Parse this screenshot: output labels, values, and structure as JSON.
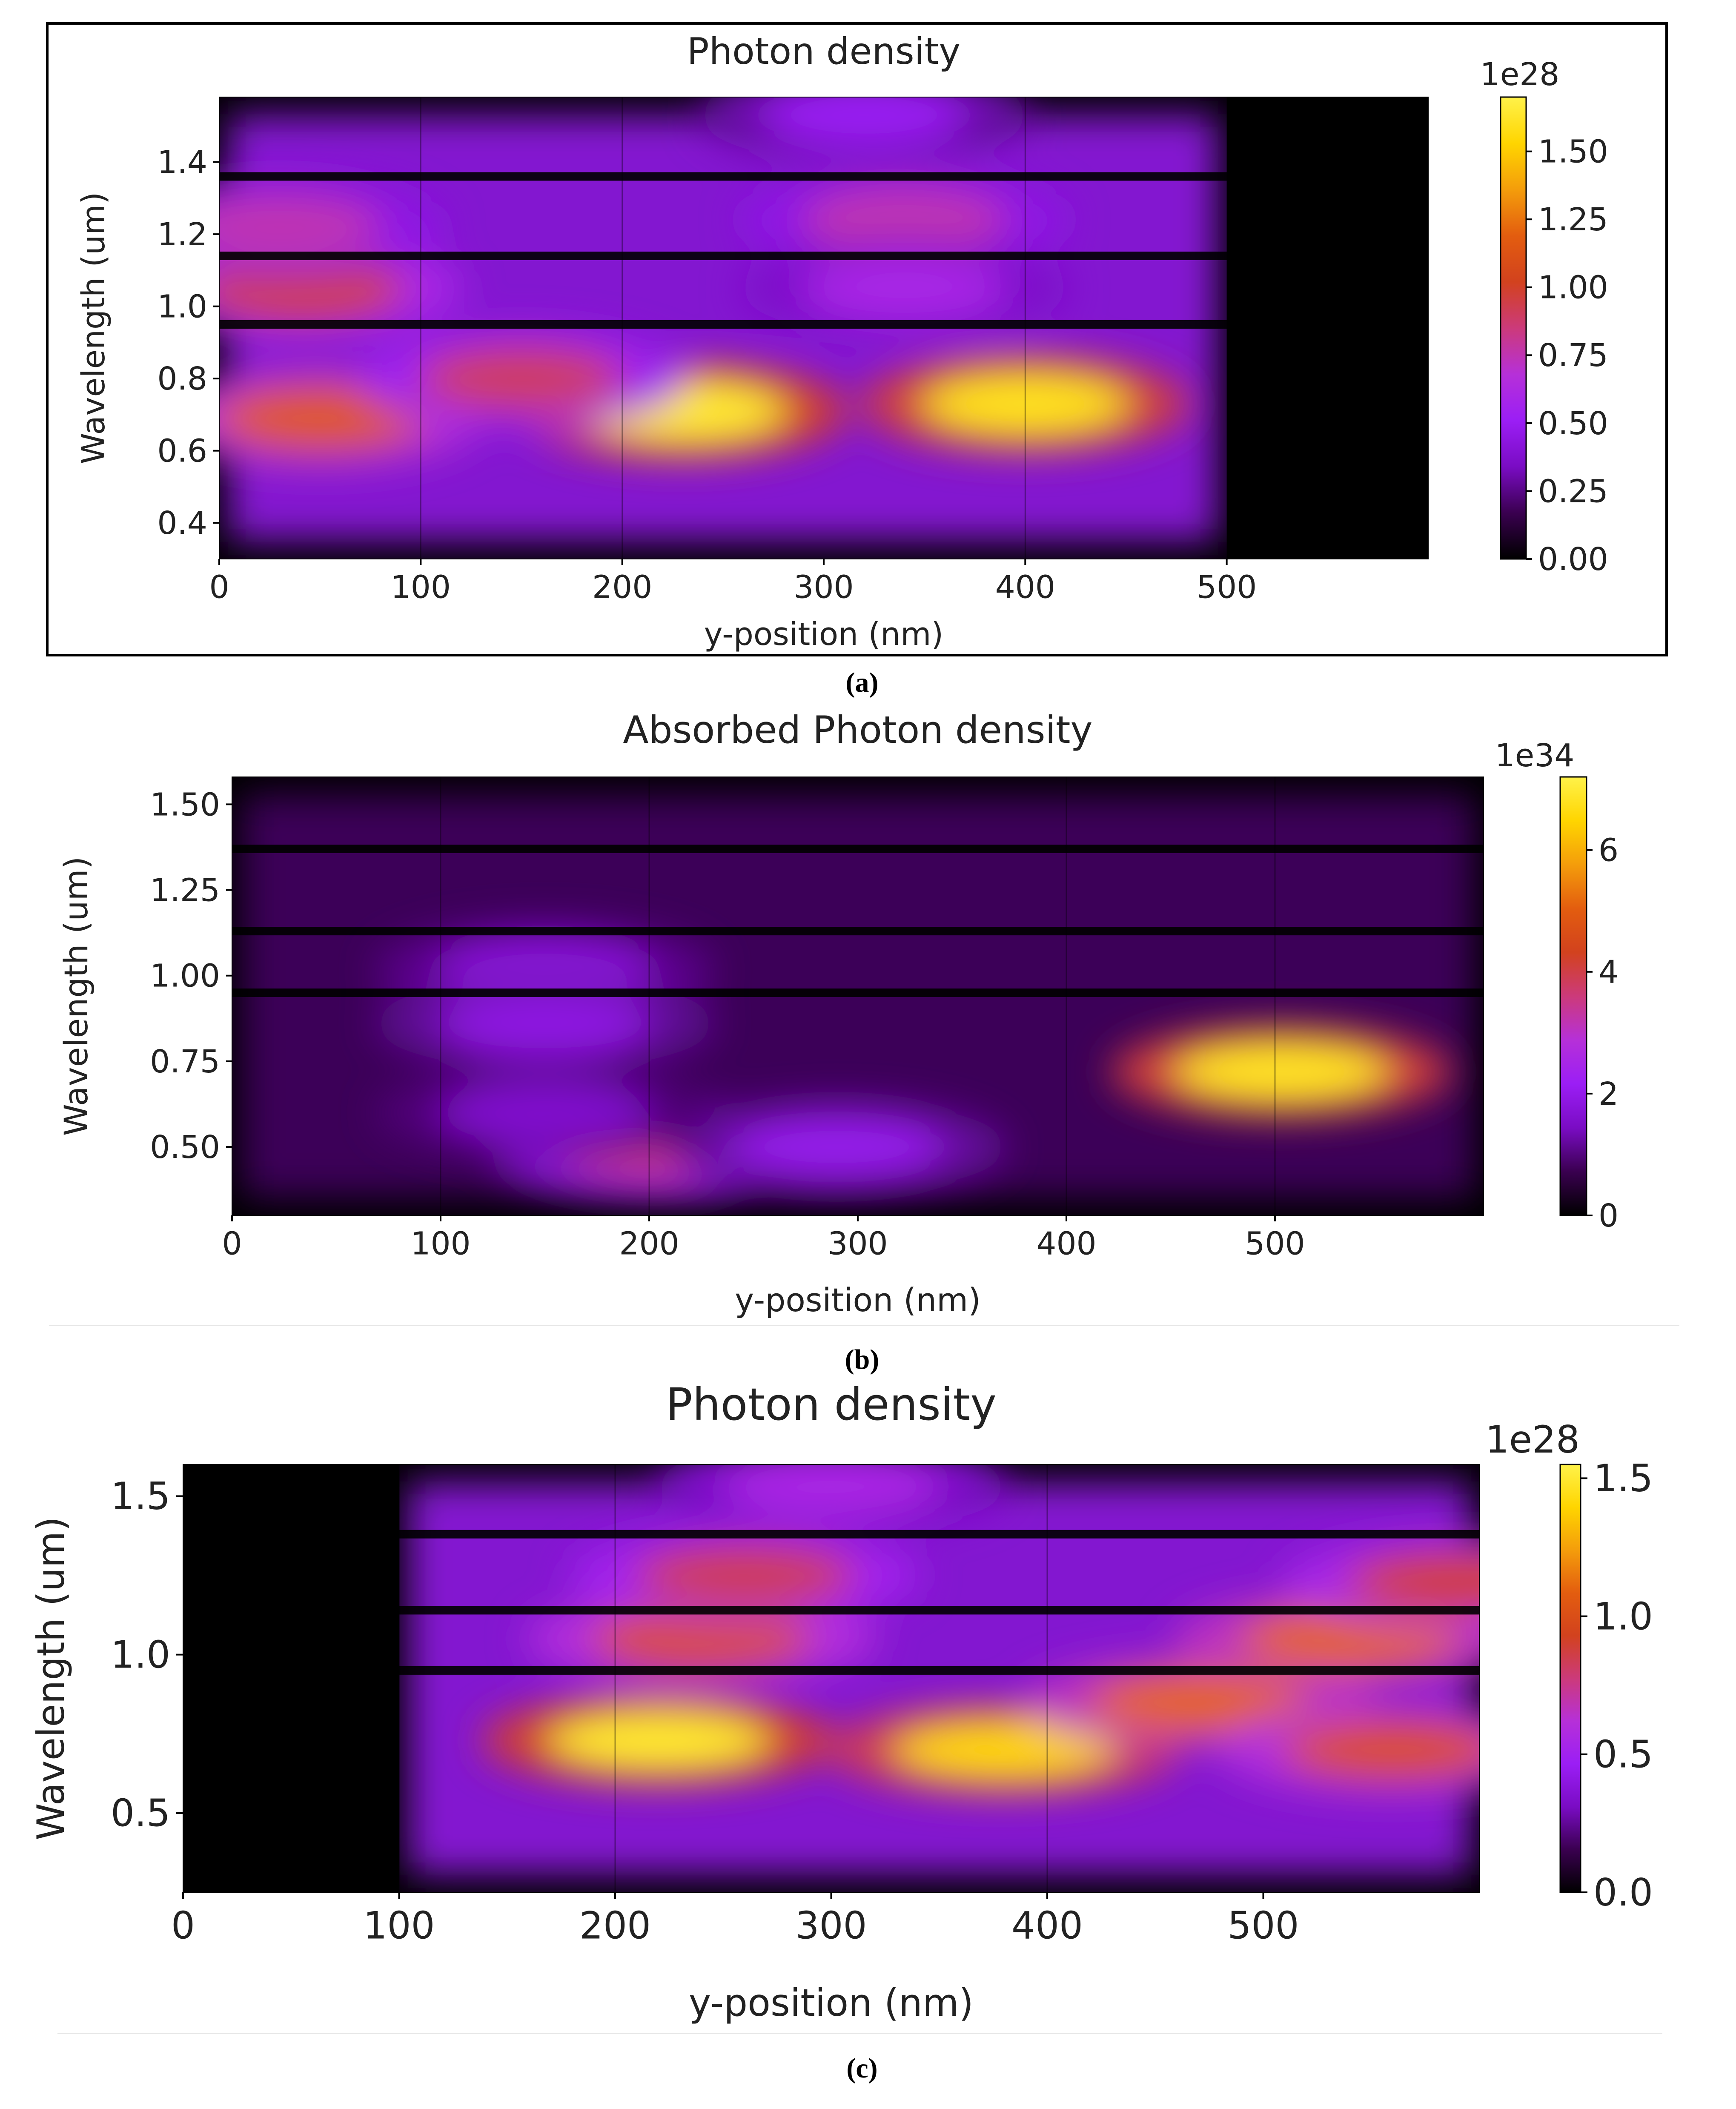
{
  "colors": {
    "colormap": [
      "#000000",
      "#3a0050",
      "#7a0cc4",
      "#9b1ef5",
      "#b630d8",
      "#cc3a7a",
      "#d2421e",
      "#e35d0f",
      "#f49d0b",
      "#ffd500",
      "#fff24a"
    ],
    "frame": "#000000",
    "text": "#222222"
  },
  "chart_data": [
    {
      "type": "heatmap",
      "title": "Photon density",
      "xlabel": "y-position (nm)",
      "ylabel": "Wavelength (um)",
      "xlim": [
        0,
        600
      ],
      "ylim": [
        0.3,
        1.58
      ],
      "xticks": [
        "0",
        "100",
        "200",
        "300",
        "400",
        "500"
      ],
      "xtick_values": [
        0,
        100,
        200,
        300,
        400,
        500
      ],
      "yticks": [
        "0.4",
        "0.6",
        "0.8",
        "1.0",
        "1.2",
        "1.4"
      ],
      "ytick_values": [
        0.4,
        0.6,
        0.8,
        1.0,
        1.2,
        1.4
      ],
      "colorbar_label": "1e28",
      "colorbar_ticks": [
        "0.00",
        "0.25",
        "0.50",
        "0.75",
        "1.00",
        "1.25",
        "1.50"
      ],
      "colorbar_tick_values": [
        0,
        0.25,
        0.5,
        0.75,
        1.0,
        1.25,
        1.5
      ],
      "colorbar_max": 1.7,
      "layer_boundaries": [
        100,
        200,
        400
      ],
      "dark_bands": [
        0.95,
        1.14,
        1.36
      ],
      "zero_region_x": [
        500,
        600
      ],
      "hotspots": [
        {
          "x": 230,
          "y": 0.71,
          "value": 1.65
        },
        {
          "x": 400,
          "y": 0.73,
          "value": 1.6
        },
        {
          "x": 50,
          "y": 0.69,
          "value": 1.15
        },
        {
          "x": 40,
          "y": 1.05,
          "value": 1.0
        },
        {
          "x": 150,
          "y": 0.8,
          "value": 0.9
        },
        {
          "x": 30,
          "y": 1.22,
          "value": 0.75
        },
        {
          "x": 340,
          "y": 1.24,
          "value": 0.75
        },
        {
          "x": 340,
          "y": 1.05,
          "value": 0.6
        },
        {
          "x": 320,
          "y": 1.53,
          "value": 0.5
        }
      ],
      "caption": "(a)"
    },
    {
      "type": "heatmap",
      "title": "Absorbed Photon density",
      "xlabel": "y-position (nm)",
      "ylabel": "Wavelength (um)",
      "xlim": [
        0,
        600
      ],
      "ylim": [
        0.3,
        1.58
      ],
      "xticks": [
        "0",
        "100",
        "200",
        "300",
        "400",
        "500"
      ],
      "xtick_values": [
        0,
        100,
        200,
        300,
        400,
        500
      ],
      "yticks": [
        "0.50",
        "0.75",
        "1.00",
        "1.25",
        "1.50"
      ],
      "ytick_values": [
        0.5,
        0.75,
        1.0,
        1.25,
        1.5
      ],
      "colorbar_label": "1e34",
      "colorbar_ticks": [
        "0",
        "2",
        "4",
        "6"
      ],
      "colorbar_tick_values": [
        0,
        2,
        4,
        6
      ],
      "colorbar_max": 7.2,
      "layer_boundaries": [
        100,
        200,
        400,
        500
      ],
      "dark_bands": [
        0.95,
        1.13,
        1.37
      ],
      "hotspots": [
        {
          "x": 503,
          "y": 0.72,
          "value": 6.8
        },
        {
          "x": 205,
          "y": 0.49,
          "value": 3.5
        },
        {
          "x": 150,
          "y": 1.02,
          "value": 1.8
        },
        {
          "x": 150,
          "y": 0.86,
          "value": 1.9
        },
        {
          "x": 290,
          "y": 0.5,
          "value": 2.0
        },
        {
          "x": 150,
          "y": 0.6,
          "value": 1.6
        }
      ],
      "caption": "(b)"
    },
    {
      "type": "heatmap",
      "title": "Photon density",
      "xlabel": "y-position (nm)",
      "ylabel": "Wavelength (um)",
      "xlim": [
        0,
        600
      ],
      "ylim": [
        0.25,
        1.6
      ],
      "xticks": [
        "0",
        "100",
        "200",
        "300",
        "400",
        "500"
      ],
      "xtick_values": [
        0,
        100,
        200,
        300,
        400,
        500
      ],
      "yticks": [
        "0.5",
        "1.0",
        "1.5"
      ],
      "ytick_values": [
        0.5,
        1.0,
        1.5
      ],
      "colorbar_label": "1e28",
      "colorbar_ticks": [
        "0.0",
        "0.5",
        "1.0",
        "1.5"
      ],
      "colorbar_tick_values": [
        0,
        0.5,
        1.0,
        1.5
      ],
      "colorbar_max": 1.55,
      "layer_boundaries": [
        100,
        200,
        400
      ],
      "dark_bands": [
        0.95,
        1.14,
        1.38
      ],
      "zero_region_x": [
        0,
        100
      ],
      "hotspots": [
        {
          "x": 220,
          "y": 0.73,
          "value": 1.5
        },
        {
          "x": 380,
          "y": 0.7,
          "value": 1.4
        },
        {
          "x": 470,
          "y": 0.85,
          "value": 1.1
        },
        {
          "x": 240,
          "y": 1.05,
          "value": 1.0
        },
        {
          "x": 540,
          "y": 1.05,
          "value": 1.1
        },
        {
          "x": 560,
          "y": 0.7,
          "value": 1.0
        },
        {
          "x": 260,
          "y": 1.25,
          "value": 0.85
        },
        {
          "x": 590,
          "y": 1.23,
          "value": 0.9
        },
        {
          "x": 300,
          "y": 1.53,
          "value": 0.55
        }
      ],
      "caption": "(c)"
    }
  ]
}
